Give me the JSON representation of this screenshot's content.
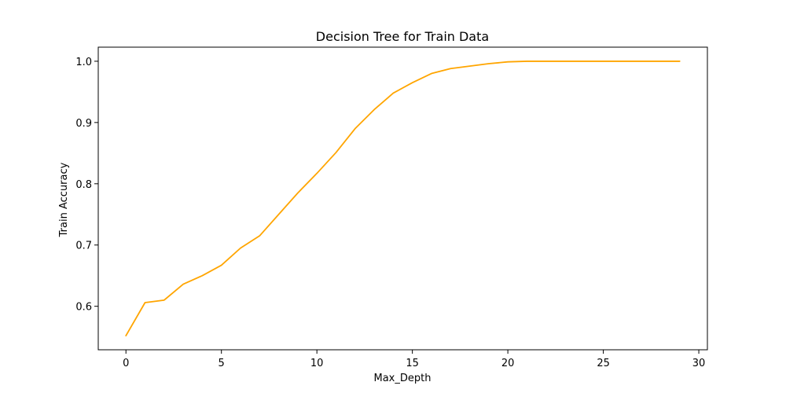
{
  "chart_data": {
    "type": "line",
    "title": "Decision Tree for Train Data",
    "xlabel": "Max_Depth",
    "ylabel": "Train Accuracy",
    "xlim": [
      -1.45,
      30.45
    ],
    "ylim": [
      0.529,
      1.023
    ],
    "xticks": [
      0,
      5,
      10,
      15,
      20,
      25,
      30
    ],
    "yticks": [
      0.6,
      0.7,
      0.8,
      0.9,
      1.0
    ],
    "ytick_labels": [
      "0.6",
      "0.7",
      "0.8",
      "0.9",
      "1.0"
    ],
    "grid": false,
    "series": [
      {
        "color": "#FFA500",
        "x": [
          0,
          1,
          2,
          3,
          4,
          5,
          6,
          7,
          8,
          9,
          10,
          11,
          12,
          13,
          14,
          15,
          16,
          17,
          18,
          19,
          20,
          21,
          22,
          23,
          24,
          25,
          26,
          27,
          28,
          29
        ],
        "y": [
          0.552,
          0.606,
          0.61,
          0.636,
          0.65,
          0.667,
          0.695,
          0.715,
          0.75,
          0.785,
          0.817,
          0.851,
          0.89,
          0.921,
          0.948,
          0.965,
          0.98,
          0.988,
          0.992,
          0.996,
          0.999,
          1.0,
          1.0,
          1.0,
          1.0,
          1.0,
          1.0,
          1.0,
          1.0,
          1.0
        ]
      }
    ]
  }
}
